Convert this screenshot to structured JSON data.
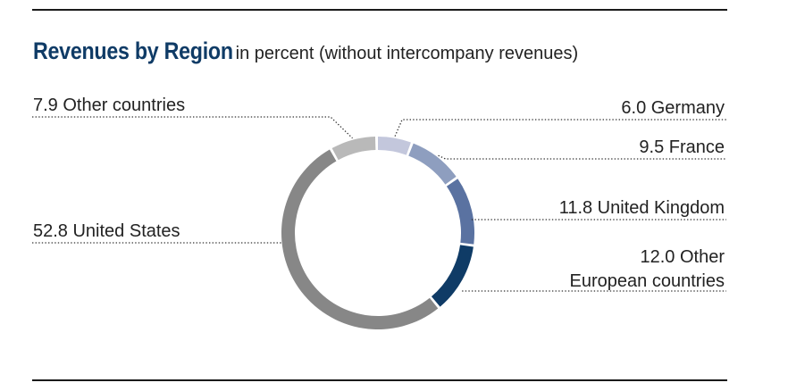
{
  "header": {
    "title": "Revenues by Region",
    "subtitle": "in percent (without intercompany revenues)"
  },
  "chart_data": {
    "type": "pie",
    "donut": true,
    "title": "Revenues by Region",
    "subtitle": "in percent (without intercompany revenues)",
    "slices": [
      {
        "label": "Germany",
        "value": 6.0,
        "color": "#c3c7dc"
      },
      {
        "label": "France",
        "value": 9.5,
        "color": "#8e9ebf"
      },
      {
        "label": "United Kingdom",
        "value": 11.8,
        "color": "#5a72a1"
      },
      {
        "label": "Other European countries",
        "value": 12.0,
        "color": "#0f3b66"
      },
      {
        "label": "United States",
        "value": 52.8,
        "color": "#878787"
      },
      {
        "label": "Other countries",
        "value": 7.9,
        "color": "#b9b9b9"
      }
    ],
    "data_labels": [
      {
        "slice": "Germany",
        "lines": [
          "6.0 Germany"
        ]
      },
      {
        "slice": "France",
        "lines": [
          "9.5 France"
        ]
      },
      {
        "slice": "United Kingdom",
        "lines": [
          "11.8 United Kingdom"
        ]
      },
      {
        "slice": "Other European countries",
        "lines": [
          "12.0 Other",
          "European countries"
        ]
      },
      {
        "slice": "United States",
        "lines": [
          "52.8 United States"
        ]
      },
      {
        "slice": "Other countries",
        "lines": [
          "7.9 Other countries"
        ]
      }
    ]
  }
}
